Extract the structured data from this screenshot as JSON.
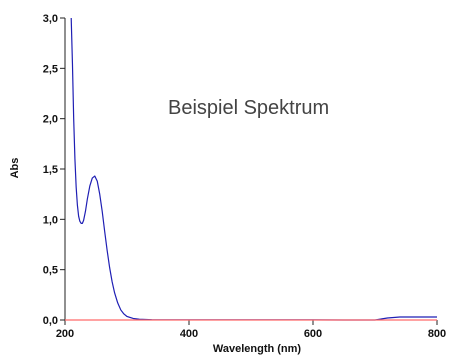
{
  "chart_data": {
    "type": "line",
    "title": "",
    "annotation": "Beispiel Spektrum",
    "xlabel": "Wavelength (nm)",
    "ylabel": "Abs",
    "xlim": [
      200,
      800
    ],
    "ylim": [
      0,
      3.0
    ],
    "x_ticks": [
      200,
      400,
      600,
      800
    ],
    "x_tick_labels": [
      "200",
      "400",
      "600",
      "800"
    ],
    "y_ticks": [
      0,
      0.5,
      1.0,
      1.5,
      2.0,
      2.5,
      3.0
    ],
    "y_tick_labels": [
      "0,0",
      "0,5",
      "1,0",
      "1,5",
      "2,0",
      "2,5",
      "3,0"
    ],
    "grid": false,
    "series": [
      {
        "color": "#1f1fb4",
        "x": [
          210,
          212,
          214,
          216,
          218,
          220,
          222,
          224,
          226,
          228,
          230,
          233,
          236,
          240,
          244,
          248,
          252,
          256,
          260,
          264,
          268,
          272,
          276,
          280,
          285,
          290,
          295,
          300,
          310,
          320,
          330,
          340,
          360,
          400,
          500,
          600,
          650,
          700,
          720,
          740,
          780,
          800
        ],
        "y": [
          3.0,
          2.55,
          2.0,
          1.6,
          1.32,
          1.14,
          1.03,
          0.98,
          0.96,
          0.96,
          0.99,
          1.08,
          1.2,
          1.33,
          1.41,
          1.43,
          1.38,
          1.25,
          1.08,
          0.88,
          0.69,
          0.52,
          0.38,
          0.27,
          0.17,
          0.1,
          0.06,
          0.035,
          0.015,
          0.008,
          0.005,
          0.003,
          0.002,
          0.001,
          0.001,
          0.001,
          0.0,
          0.0,
          0.02,
          0.03,
          0.03,
          0.03
        ]
      },
      {
        "color": "#ff6a6a",
        "x": [
          200,
          800
        ],
        "y": [
          0.0,
          0.0
        ]
      }
    ]
  }
}
